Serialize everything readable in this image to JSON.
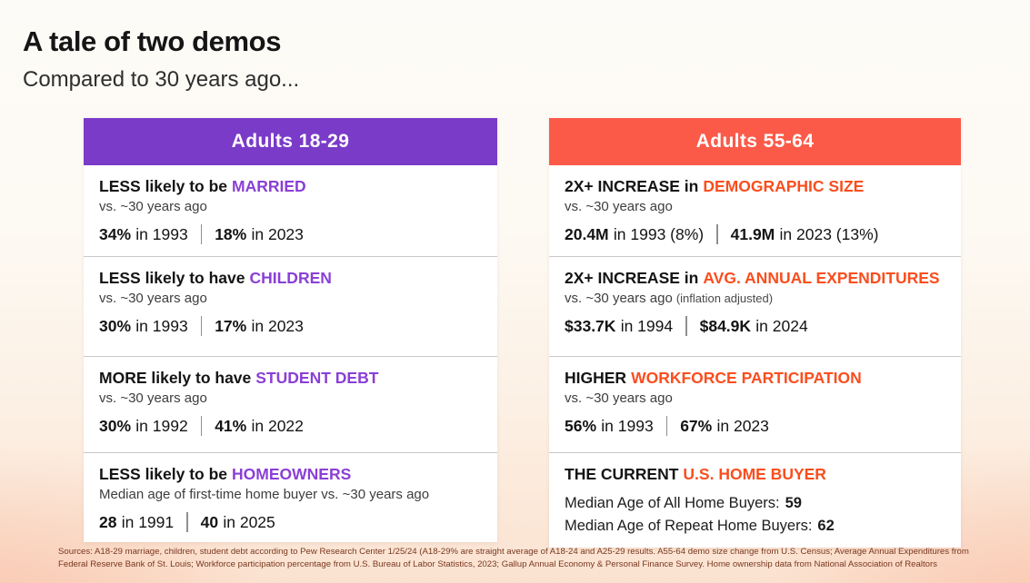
{
  "slide": {
    "title": "A tale of two demos",
    "subtitle": "Compared to 30 years ago..."
  },
  "colors": {
    "left_header_bg": "#7a3bc8",
    "left_accent": "#8a3fd6",
    "right_header_bg": "#fb5a49",
    "right_accent": "#fa4e1e",
    "background_bottom": "#fbe2d0",
    "footer_text": "#79371f"
  },
  "columns": [
    {
      "header": "Adults 18-29",
      "rows": [
        {
          "headline": "LESS likely to be",
          "accent": "MARRIED",
          "sub": "vs. ~30 years ago",
          "stats": [
            {
              "value": "34%",
              "label": "in 1993"
            },
            {
              "value": "18%",
              "label": "in 2023"
            }
          ]
        },
        {
          "headline": "LESS likely to have",
          "accent": "CHILDREN",
          "sub": "vs. ~30 years ago",
          "stats": [
            {
              "value": "30%",
              "label": "in 1993"
            },
            {
              "value": "17%",
              "label": "in 2023"
            }
          ]
        },
        {
          "headline": "MORE likely to have",
          "accent": "STUDENT DEBT",
          "sub": "vs. ~30 years ago",
          "stats": [
            {
              "value": "30%",
              "label": "in 1992"
            },
            {
              "value": "41%",
              "label": "in 2022"
            }
          ]
        },
        {
          "headline": "LESS likely to be",
          "accent": "HOMEOWNERS",
          "sub": "Median age of first-time home buyer vs. ~30 years ago",
          "stats": [
            {
              "value": "28",
              "label": "in 1991"
            },
            {
              "value": "40",
              "label": "in 2025"
            }
          ]
        }
      ]
    },
    {
      "header": "Adults 55-64",
      "rows": [
        {
          "headline": "2X+ INCREASE in",
          "accent": "DEMOGRAPHIC SIZE",
          "sub": "vs. ~30 years ago",
          "stats": [
            {
              "value": "20.4M",
              "label": "in 1993 (8%)"
            },
            {
              "value": "41.9M",
              "label": "in 2023 (13%)"
            }
          ]
        },
        {
          "headline": "2X+ INCREASE in",
          "accent": "AVG. ANNUAL EXPENDITURES",
          "sub": "vs. ~30 years ago",
          "sub_note": "(inflation adjusted)",
          "stats": [
            {
              "value": "$33.7K",
              "label": "in 1994"
            },
            {
              "value": "$84.9K",
              "label": "in 2024"
            }
          ]
        },
        {
          "headline": "HIGHER",
          "accent": "WORKFORCE PARTICIPATION",
          "sub": "vs. ~30 years ago",
          "stats": [
            {
              "value": "56%",
              "label": "in 1993"
            },
            {
              "value": "67%",
              "label": "in 2023"
            }
          ]
        },
        {
          "headline": "THE CURRENT",
          "accent": "U.S. HOME BUYER",
          "lines": [
            {
              "label": "Median Age of All Home Buyers:",
              "value": "59"
            },
            {
              "label": "Median Age of Repeat Home Buyers:",
              "value": "62"
            }
          ]
        }
      ]
    }
  ],
  "footer": {
    "line1": "Sources: A18-29 marriage, children, student debt according to Pew Research Center 1/25/24 (A18-29% are straight average of A18-24 and A25-29 results.  A55-64 demo size change from U.S. Census; Average Annual Expenditures from",
    "line2": "Federal Reserve Bank of St. Louis; Workforce participation percentage from U.S. Bureau of Labor Statistics, 2023; Gallup Annual Economy & Personal Finance Survey.  Home ownership data from National Association of Realtors"
  }
}
